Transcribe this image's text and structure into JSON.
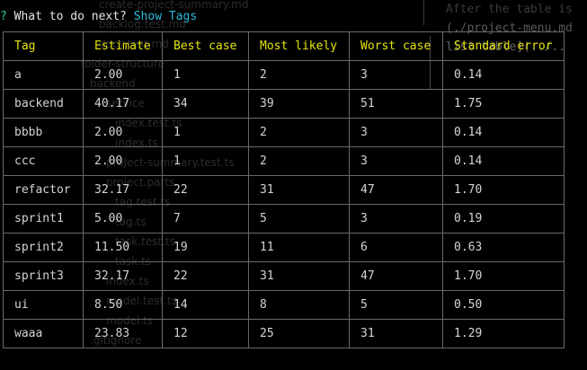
{
  "prompt": {
    "symbol": "?",
    "question": "What to do next?",
    "answer": "Show Tags"
  },
  "background_text": {
    "right_line1": "After the table is",
    "right_line2": "(./project-menu.md",
    "right_line3": "list table](../..",
    "editor_files": [
      "create-project-summary.md",
      "backlog.test.md",
      "docs.test.md",
      "folder-structure",
      "backend",
      "service",
      "index.test.ts",
      "index.ts",
      "project-summary.test.ts",
      "project.parts",
      "tag.test.ts",
      "tag.ts",
      "task.test.ts",
      "task.ts",
      "index.ts",
      "model.test.ts",
      "model.ts",
      ".gitignore"
    ]
  },
  "table": {
    "headers": [
      "Tag",
      "Estimate",
      "Best case",
      "Most likely",
      "Worst case",
      "Standard error"
    ],
    "rows": [
      [
        "a",
        "2.00",
        "1",
        "2",
        "3",
        "0.14"
      ],
      [
        "backend",
        "40.17",
        "34",
        "39",
        "51",
        "1.75"
      ],
      [
        "bbbb",
        "2.00",
        "1",
        "2",
        "3",
        "0.14"
      ],
      [
        "ccc",
        "2.00",
        "1",
        "2",
        "3",
        "0.14"
      ],
      [
        "refactor",
        "32.17",
        "22",
        "31",
        "47",
        "1.70"
      ],
      [
        "sprint1",
        "5.00",
        "7",
        "5",
        "3",
        "0.19"
      ],
      [
        "sprint2",
        "11.50",
        "19",
        "11",
        "6",
        "0.63"
      ],
      [
        "sprint3",
        "32.17",
        "22",
        "31",
        "47",
        "1.70"
      ],
      [
        "ui",
        "8.50",
        "14",
        "8",
        "5",
        "0.50"
      ],
      [
        "waaa",
        "23.83",
        "12",
        "25",
        "31",
        "1.29"
      ]
    ]
  },
  "colors": {
    "prompt_symbol": "#23d18b",
    "answer": "#29b8db",
    "header_text": "#e5e510",
    "cell_text": "#d4d4d4",
    "border": "#6a6a6a",
    "background": "#000000"
  }
}
